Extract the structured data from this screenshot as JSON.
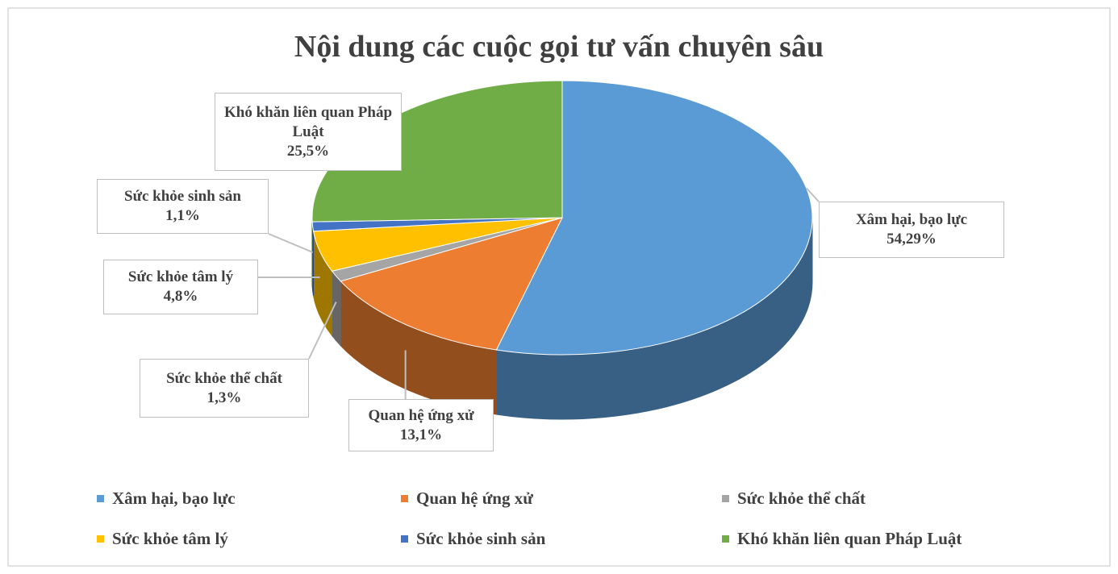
{
  "chart_data": {
    "type": "pie3d",
    "title": "Nội dung các cuộc gọi tư vấn chuyên sâu",
    "categories": [
      "Xâm hại, bạo lực",
      "Quan hệ ứng xử",
      "Sức khỏe thể chất",
      "Sức khỏe tâm lý",
      "Sức khỏe sinh sản",
      "Khó khăn liên quan Pháp Luật"
    ],
    "values": [
      54.29,
      13.1,
      1.3,
      4.8,
      1.1,
      25.5
    ],
    "value_labels": [
      "54,29%",
      "13,1%",
      "1,3%",
      "4,8%",
      "1,1%",
      "25,5%"
    ],
    "colors": [
      "#5b9bd5",
      "#ed7d31",
      "#a5a5a5",
      "#ffc000",
      "#4472c4",
      "#70ad47"
    ],
    "legend": "bottom"
  }
}
